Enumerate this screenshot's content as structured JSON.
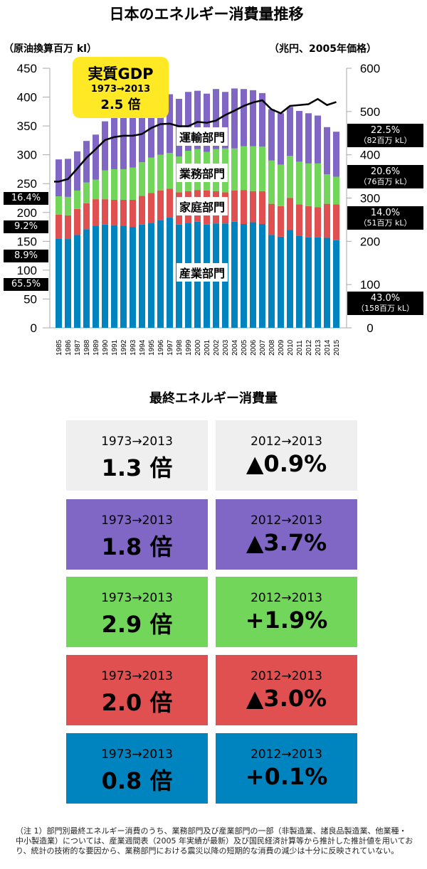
{
  "title": "日本のエネルギー消費量推移",
  "left_unit": "（原油換算百万 kl）",
  "right_unit": "（兆円、2005年価格）",
  "gdp_box": {
    "label": "実質GDP",
    "period": "1973→2013",
    "value": "2.5 倍"
  },
  "sector_labels": {
    "transport": "運輸部門",
    "commercial": "業務部門",
    "household": "家庭部門",
    "industry": "産業部門"
  },
  "left_shares": [
    "16.4%",
    "9.2%",
    "8.9%",
    "65.5%"
  ],
  "right_shares": [
    {
      "pct": "22.5%",
      "amt": "（82百万 kL）"
    },
    {
      "pct": "20.6%",
      "amt": "（76百万 kL）"
    },
    {
      "pct": "14.0%",
      "amt": "（51百万 kL）"
    },
    {
      "pct": "43.0%",
      "amt": "（158百万 kL）"
    }
  ],
  "chart_data": {
    "type": "bar",
    "stacked": true,
    "title": "日本のエネルギー消費量推移",
    "ylabel": "原油換算百万 kl",
    "y2label": "兆円、2005年価格",
    "ylim": [
      0,
      450
    ],
    "y2lim": [
      0,
      600
    ],
    "yticks": [
      "0",
      "50",
      "100",
      "150",
      "200",
      "250",
      "300",
      "350",
      "400",
      "450"
    ],
    "y2ticks": [
      "0",
      "100",
      "200",
      "300",
      "400",
      "500",
      "600"
    ],
    "categories": [
      "1985",
      "1986",
      "1987",
      "1988",
      "1989",
      "1990",
      "1991",
      "1992",
      "1993",
      "1994",
      "1995",
      "1996",
      "1997",
      "1998",
      "1999",
      "2000",
      "2001",
      "2002",
      "2003",
      "2004",
      "2005",
      "2006",
      "2007",
      "2008",
      "2009",
      "2010",
      "2011",
      "2012",
      "2013",
      "2014",
      "2015"
    ],
    "series": [
      {
        "name": "産業部門",
        "color": "#0084bf",
        "values": [
          155,
          154,
          161,
          171,
          177,
          179,
          178,
          177,
          175,
          179,
          182,
          187,
          191,
          179,
          182,
          184,
          179,
          181,
          181,
          184,
          180,
          183,
          180,
          161,
          158,
          170,
          160,
          157,
          157,
          156,
          152
        ]
      },
      {
        "name": "家庭部門",
        "color": "#e05050",
        "values": [
          41,
          41,
          45,
          45,
          46,
          44,
          44,
          45,
          47,
          50,
          52,
          51,
          50,
          56,
          55,
          55,
          59,
          56,
          54,
          54,
          59,
          54,
          57,
          54,
          53,
          55,
          54,
          54,
          52,
          59,
          62
        ]
      },
      {
        "name": "業務部門",
        "color": "#72d65a",
        "values": [
          32,
          32,
          32,
          36,
          34,
          50,
          53,
          53,
          56,
          58,
          61,
          62,
          62,
          62,
          70,
          71,
          67,
          73,
          76,
          73,
          76,
          78,
          77,
          75,
          72,
          73,
          74,
          74,
          76,
          51,
          48
        ]
      },
      {
        "name": "運輸部門",
        "color": "#8066c5",
        "values": [
          64,
          66,
          68,
          72,
          78,
          85,
          90,
          91,
          88,
          80,
          75,
          72,
          102,
          100,
          102,
          101,
          101,
          104,
          98,
          104,
          99,
          97,
          93,
          89,
          89,
          85,
          88,
          87,
          83,
          82,
          78
        ]
      }
    ],
    "line": {
      "name": "実質GDP",
      "axis": "right",
      "color": "#000000",
      "values": [
        338,
        344,
        368,
        393,
        413,
        434,
        441,
        444,
        444,
        448,
        462,
        471,
        472,
        466,
        466,
        476,
        474,
        479,
        492,
        502,
        513,
        521,
        526,
        505,
        496,
        513,
        515,
        517,
        529,
        515,
        522
      ]
    }
  },
  "section_title": "最終エネルギー消費量",
  "cards": [
    {
      "color": "#efefef",
      "fg": "#000000",
      "long_period": "1973→2013",
      "long_value": "1.3 倍",
      "short_period": "2012→2013",
      "short_value": "▲0.9%"
    },
    {
      "color": "#8066c5",
      "fg": "#000000",
      "long_period": "1973→2013",
      "long_value": "1.8 倍",
      "short_period": "2012→2013",
      "short_value": "▲3.7%"
    },
    {
      "color": "#72d65a",
      "fg": "#000000",
      "long_period": "1973→2013",
      "long_value": "2.9 倍",
      "short_period": "2012→2013",
      "short_value": "+1.9%"
    },
    {
      "color": "#e05050",
      "fg": "#000000",
      "long_period": "1973→2013",
      "long_value": "2.0 倍",
      "short_period": "2012→2013",
      "short_value": "▲3.0%"
    },
    {
      "color": "#0084bf",
      "fg": "#000000",
      "long_period": "1973→2013",
      "long_value": "0.8 倍",
      "short_period": "2012→2013",
      "short_value": "+0.1%"
    }
  ],
  "note": "（注 1）部門別最終エネルギー消費のうち、業務部門及び産業部門の一部（非製造業、諸良品製造業、他業種・中小製造業）については、産業週間表（2005 年実績が最新）及び国民経済計算等から推計した推計値を用いており、統計の技術的な要因から、業務部門における震災以降の短期的な消費の減少は十分に反映されていない。"
}
